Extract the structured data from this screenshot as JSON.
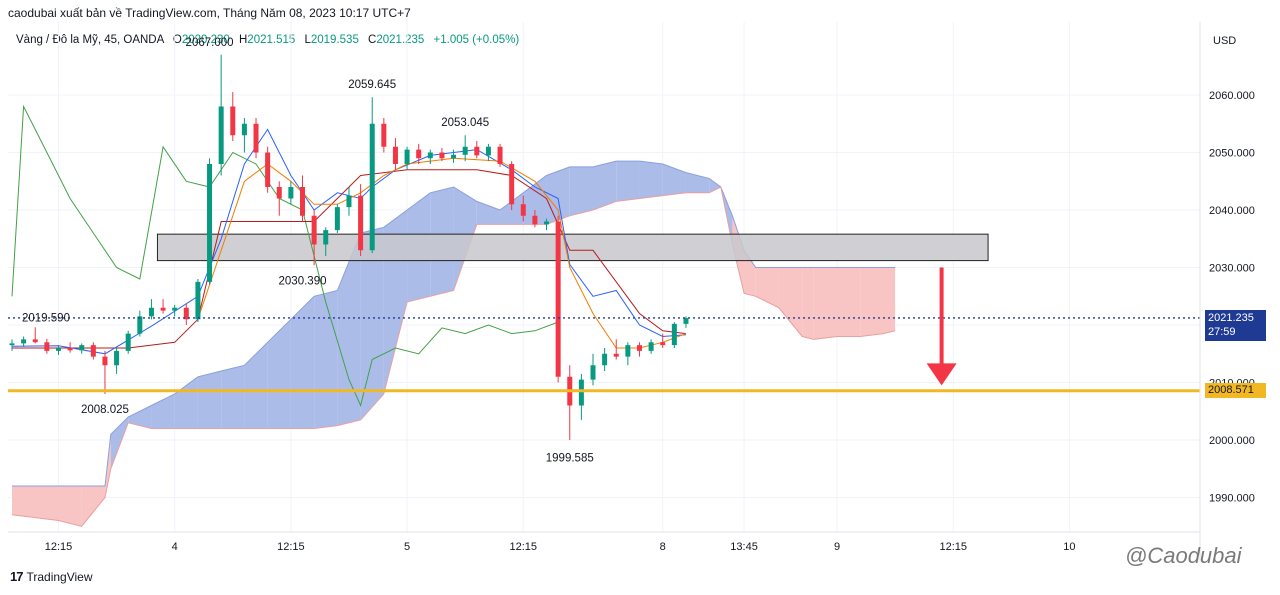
{
  "header": {
    "publisher_line": "caodubai xuất bản về TradingView.com, Tháng Năm 08, 2023 10:17 UTC+7"
  },
  "legend": {
    "symbol": "Vàng / Đô la Mỹ, 45, OANDA",
    "o_label": "O",
    "o_value": "2020.230",
    "h_label": "H",
    "h_value": "2021.515",
    "l_label": "L",
    "l_value": "2019.535",
    "c_label": "C",
    "c_value": "2021.235",
    "change": "+1.005 (+0.05%)"
  },
  "currency": "USD",
  "price_tags": {
    "last_price": "2021.235",
    "countdown": "27:59",
    "level": "2008.571"
  },
  "colors": {
    "up": "#089981",
    "down": "#f23645",
    "cloud_bull": "#a8b8e8",
    "cloud_bear": "#f8c1c1",
    "zone_fill": "#c8c8cc",
    "level_line": "#f2b824",
    "last_price_line": "#1f3a93",
    "arrow": "#f23645"
  },
  "footer": {
    "brand": "TradingView",
    "watermark": "@Caodubai"
  },
  "chart_data": {
    "type": "candlestick",
    "y_axis": {
      "ticks": [
        "2060.000",
        "2050.000",
        "2040.000",
        "2030.000",
        "2020.000",
        "2010.000",
        "2000.000",
        "1990.000"
      ],
      "tick_values": [
        2060,
        2050,
        2040,
        2030,
        2020,
        2010,
        2000,
        1990
      ],
      "range": [
        1983,
        2077
      ]
    },
    "x_axis": {
      "ticks": [
        "12:15",
        "4",
        "12:15",
        "5",
        "12:15",
        "8",
        "13:45",
        "9",
        "12:15",
        "10"
      ],
      "tick_index": [
        4,
        14,
        24,
        34,
        44,
        56,
        63,
        71,
        81,
        91
      ]
    },
    "annotations": [
      {
        "text": "2067.000",
        "index": 17,
        "price": 2067.0,
        "position": "above"
      },
      {
        "text": "2059.645",
        "index": 31,
        "price": 2059.645,
        "position": "above"
      },
      {
        "text": "2053.045",
        "index": 39,
        "price": 2053.045,
        "position": "above"
      },
      {
        "text": "2030.390",
        "index": 25,
        "price": 2030.39,
        "position": "below"
      },
      {
        "text": "2019.590",
        "index": 2,
        "price": 2019.59,
        "position": "left"
      },
      {
        "text": "2008.025",
        "index": 8,
        "price": 2008.025,
        "position": "below"
      },
      {
        "text": "1999.585",
        "index": 48,
        "price": 1999.585,
        "position": "below"
      }
    ],
    "zone": {
      "top": 2035.8,
      "bottom": 2031.2,
      "from_index": 12,
      "to_index": 84
    },
    "level_line": 2008.571,
    "last_price": 2021.235,
    "arrow": {
      "index": 80,
      "from": 2030.0,
      "to": 2009.5,
      "direction": "down"
    },
    "candles": [
      [
        2016.5,
        2017.5,
        2015.5,
        2016.8
      ],
      [
        2016.8,
        2018.0,
        2016.2,
        2017.5
      ],
      [
        2017.5,
        2019.6,
        2016.8,
        2017.0
      ],
      [
        2017.0,
        2017.6,
        2015.0,
        2015.5
      ],
      [
        2015.5,
        2016.5,
        2014.8,
        2016.0
      ],
      [
        2016.0,
        2017.0,
        2015.2,
        2015.6
      ],
      [
        2015.6,
        2016.8,
        2015.0,
        2016.5
      ],
      [
        2016.5,
        2017.0,
        2014.0,
        2014.5
      ],
      [
        2014.5,
        2015.5,
        2008.0,
        2013.0
      ],
      [
        2013.0,
        2016.0,
        2011.5,
        2015.5
      ],
      [
        2015.5,
        2019.0,
        2015.0,
        2018.5
      ],
      [
        2018.5,
        2022.5,
        2018.0,
        2021.5
      ],
      [
        2021.5,
        2024.5,
        2021.0,
        2023.0
      ],
      [
        2023.0,
        2024.5,
        2022.0,
        2022.5
      ],
      [
        2022.5,
        2023.5,
        2021.5,
        2023.0
      ],
      [
        2023.0,
        2023.8,
        2020.0,
        2021.0
      ],
      [
        2021.0,
        2028.0,
        2020.5,
        2027.5
      ],
      [
        2027.5,
        2049.0,
        2027.0,
        2048.0
      ],
      [
        2048.0,
        2067.0,
        2046.0,
        2058.0
      ],
      [
        2058.0,
        2060.5,
        2052.0,
        2053.0
      ],
      [
        2053.0,
        2056.0,
        2050.0,
        2055.0
      ],
      [
        2055.0,
        2056.0,
        2049.0,
        2050.0
      ],
      [
        2050.0,
        2051.0,
        2043.0,
        2044.0
      ],
      [
        2044.0,
        2045.0,
        2039.0,
        2042.0
      ],
      [
        2042.0,
        2045.0,
        2041.0,
        2044.0
      ],
      [
        2044.0,
        2046.0,
        2038.0,
        2039.0
      ],
      [
        2039.0,
        2040.0,
        2030.4,
        2034.0
      ],
      [
        2034.0,
        2037.0,
        2032.0,
        2036.5
      ],
      [
        2036.5,
        2041.0,
        2036.0,
        2040.5
      ],
      [
        2040.5,
        2044.0,
        2039.0,
        2042.5
      ],
      [
        2042.5,
        2044.5,
        2032.0,
        2033.0
      ],
      [
        2033.0,
        2059.6,
        2032.5,
        2055.0
      ],
      [
        2055.0,
        2056.0,
        2050.0,
        2051.0
      ],
      [
        2051.0,
        2052.5,
        2047.0,
        2048.0
      ],
      [
        2048.0,
        2051.0,
        2047.0,
        2050.5
      ],
      [
        2050.5,
        2051.5,
        2048.0,
        2049.0
      ],
      [
        2049.0,
        2050.5,
        2048.0,
        2050.0
      ],
      [
        2050.0,
        2050.8,
        2048.5,
        2049.0
      ],
      [
        2049.0,
        2050.5,
        2048.2,
        2049.6
      ],
      [
        2049.6,
        2053.0,
        2048.5,
        2051.0
      ],
      [
        2051.0,
        2052.0,
        2049.0,
        2049.5
      ],
      [
        2049.5,
        2051.5,
        2048.5,
        2051.0
      ],
      [
        2051.0,
        2051.5,
        2047.5,
        2048.0
      ],
      [
        2048.0,
        2048.5,
        2040.0,
        2041.0
      ],
      [
        2041.0,
        2042.5,
        2038.0,
        2039.0
      ],
      [
        2039.0,
        2040.0,
        2037.0,
        2037.5
      ],
      [
        2037.5,
        2038.5,
        2036.5,
        2038.0
      ],
      [
        2038.0,
        2039.0,
        2010.0,
        2011.0
      ],
      [
        2011.0,
        2013.0,
        2000.0,
        2006.0
      ],
      [
        2006.0,
        2011.5,
        2003.5,
        2010.5
      ],
      [
        2010.5,
        2015.0,
        2009.5,
        2013.0
      ],
      [
        2013.0,
        2016.0,
        2012.0,
        2015.0
      ],
      [
        2015.0,
        2017.5,
        2014.0,
        2014.5
      ],
      [
        2014.5,
        2017.0,
        2013.0,
        2016.5
      ],
      [
        2016.5,
        2017.0,
        2014.5,
        2015.5
      ],
      [
        2015.5,
        2017.5,
        2015.0,
        2017.0
      ],
      [
        2017.0,
        2018.5,
        2016.0,
        2016.5
      ],
      [
        2016.5,
        2020.5,
        2016.0,
        2020.2
      ],
      [
        2020.2,
        2021.5,
        2019.5,
        2021.2
      ]
    ],
    "tenkan_sen": [
      [
        0,
        2016.3
      ],
      [
        4,
        2016.4
      ],
      [
        8,
        2015.0
      ],
      [
        12,
        2019.8
      ],
      [
        16,
        2025.0
      ],
      [
        18,
        2035.0
      ],
      [
        20,
        2048.0
      ],
      [
        22,
        2054.0
      ],
      [
        24,
        2046.0
      ],
      [
        26,
        2040.0
      ],
      [
        28,
        2043.0
      ],
      [
        30,
        2042.0
      ],
      [
        31,
        2044.0
      ],
      [
        33,
        2047.0
      ],
      [
        36,
        2049.5
      ],
      [
        40,
        2050.5
      ],
      [
        43,
        2047.0
      ],
      [
        45,
        2044.0
      ],
      [
        47,
        2042.0
      ],
      [
        48,
        2030.5
      ],
      [
        50,
        2025.0
      ],
      [
        52,
        2026.0
      ],
      [
        54,
        2020.0
      ],
      [
        56,
        2018.0
      ],
      [
        58,
        2018.3
      ]
    ],
    "kijun_sen": [
      [
        0,
        2016.0
      ],
      [
        10,
        2016.0
      ],
      [
        14,
        2017.0
      ],
      [
        16,
        2021.0
      ],
      [
        18,
        2038.0
      ],
      [
        22,
        2038.0
      ],
      [
        26,
        2038.0
      ],
      [
        30,
        2046.0
      ],
      [
        34,
        2047.0
      ],
      [
        40,
        2047.0
      ],
      [
        43,
        2046.0
      ],
      [
        46,
        2042.0
      ],
      [
        48,
        2033.0
      ],
      [
        50,
        2033.0
      ],
      [
        54,
        2022.0
      ],
      [
        56,
        2019.0
      ],
      [
        58,
        2018.5
      ]
    ],
    "chikou_span": [
      [
        0,
        2025.0
      ],
      [
        1,
        2058.0
      ],
      [
        3,
        2050.0
      ],
      [
        5,
        2042.0
      ],
      [
        7,
        2036.0
      ],
      [
        9,
        2030.0
      ],
      [
        11,
        2028.0
      ],
      [
        13,
        2051.0
      ],
      [
        15,
        2045.0
      ],
      [
        17,
        2044.0
      ],
      [
        19,
        2050.0
      ],
      [
        21,
        2048.0
      ],
      [
        23,
        2042.0
      ],
      [
        25,
        2040.0
      ],
      [
        27,
        2024.0
      ],
      [
        29,
        2010.5
      ],
      [
        30,
        2006.0
      ],
      [
        31,
        2014.0
      ],
      [
        33,
        2016.0
      ],
      [
        35,
        2015.0
      ],
      [
        37,
        2019.5
      ],
      [
        39,
        2018.5
      ],
      [
        41,
        2020.0
      ],
      [
        43,
        2018.5
      ],
      [
        45,
        2019.0
      ],
      [
        47,
        2020.5
      ]
    ],
    "ema_orange": [
      [
        16,
        2021.0
      ],
      [
        18,
        2033.0
      ],
      [
        20,
        2045.0
      ],
      [
        22,
        2048.0
      ],
      [
        24,
        2045.0
      ],
      [
        26,
        2041.0
      ],
      [
        28,
        2041.0
      ],
      [
        30,
        2043.0
      ],
      [
        32,
        2046.0
      ],
      [
        34,
        2048.0
      ],
      [
        38,
        2049.0
      ],
      [
        42,
        2048.5
      ],
      [
        45,
        2045.0
      ],
      [
        47,
        2040.0
      ],
      [
        48,
        2030.0
      ],
      [
        50,
        2022.0
      ],
      [
        52,
        2016.0
      ],
      [
        54,
        2016.0
      ],
      [
        56,
        2017.0
      ],
      [
        58,
        2018.5
      ]
    ],
    "cloud": {
      "upper": [
        [
          0,
          1992.0
        ],
        [
          8,
          1992.0
        ],
        [
          8.5,
          2001.0
        ],
        [
          10,
          2004.0
        ],
        [
          12,
          2006.0
        ],
        [
          14,
          2008.0
        ],
        [
          16,
          2011.0
        ],
        [
          18,
          2012.0
        ],
        [
          20,
          2013.0
        ],
        [
          22,
          2017.0
        ],
        [
          24,
          2021.0
        ],
        [
          26,
          2025.0
        ],
        [
          28,
          2026.0
        ],
        [
          30,
          2036.0
        ],
        [
          32,
          2037.0
        ],
        [
          34,
          2040.0
        ],
        [
          36,
          2043.0
        ],
        [
          38,
          2044.0
        ],
        [
          40,
          2041.5
        ],
        [
          42,
          2040.0
        ],
        [
          44,
          2043.0
        ],
        [
          46,
          2046.0
        ],
        [
          48,
          2047.5
        ],
        [
          50,
          2047.5
        ],
        [
          52,
          2048.5
        ],
        [
          54,
          2048.5
        ],
        [
          56,
          2048.0
        ],
        [
          58,
          2046.5
        ],
        [
          60,
          2045.5
        ],
        [
          61,
          2044.0
        ],
        [
          62,
          2039.0
        ],
        [
          63,
          2033.0
        ],
        [
          64,
          2030.0
        ],
        [
          66,
          2030.0
        ],
        [
          69,
          2030.0
        ],
        [
          73,
          2030.0
        ],
        [
          75,
          2030.0
        ],
        [
          76,
          2030.0
        ]
      ],
      "lower": [
        [
          0,
          1987.0
        ],
        [
          4,
          1986.0
        ],
        [
          6,
          1985.0
        ],
        [
          8,
          1990.0
        ],
        [
          8.5,
          1995.0
        ],
        [
          10,
          2003.0
        ],
        [
          12,
          2002.0
        ],
        [
          14,
          2002.0
        ],
        [
          16,
          2002.0
        ],
        [
          18,
          2002.0
        ],
        [
          20,
          2002.0
        ],
        [
          22,
          2002.0
        ],
        [
          24,
          2002.0
        ],
        [
          26,
          2002.0
        ],
        [
          28,
          2002.5
        ],
        [
          30,
          2003.5
        ],
        [
          32,
          2008.0
        ],
        [
          34,
          2024.0
        ],
        [
          36,
          2025.0
        ],
        [
          38,
          2026.0
        ],
        [
          40,
          2037.5
        ],
        [
          42,
          2037.5
        ],
        [
          44,
          2037.5
        ],
        [
          46,
          2037.5
        ],
        [
          48,
          2039.0
        ],
        [
          50,
          2040.0
        ],
        [
          52,
          2041.5
        ],
        [
          54,
          2042.0
        ],
        [
          56,
          2042.5
        ],
        [
          58,
          2043.0
        ],
        [
          60,
          2043.0
        ],
        [
          61,
          2044.0
        ],
        [
          62,
          2034.0
        ],
        [
          63,
          2025.5
        ],
        [
          64,
          2025.0
        ],
        [
          66,
          2023.0
        ],
        [
          68,
          2018.0
        ],
        [
          69,
          2017.5
        ],
        [
          71,
          2018.0
        ],
        [
          73,
          2018.0
        ],
        [
          75,
          2018.5
        ],
        [
          76,
          2019.0
        ]
      ]
    }
  }
}
